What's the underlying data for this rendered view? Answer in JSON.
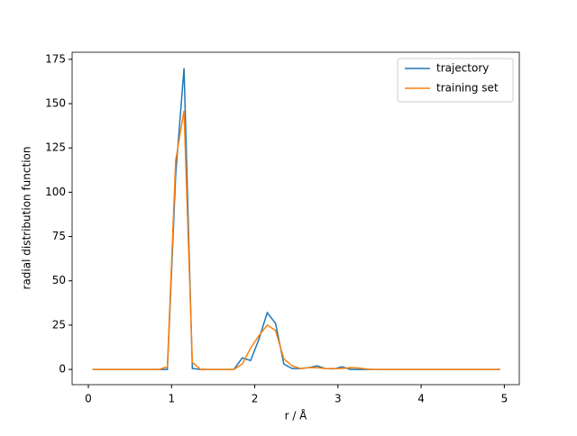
{
  "chart_data": {
    "type": "line",
    "xlabel": "r / Å",
    "ylabel": "radial distribution function",
    "x": [
      0.05,
      0.15,
      0.25,
      0.35,
      0.45,
      0.55,
      0.65,
      0.75,
      0.85,
      0.95,
      1.05,
      1.15,
      1.25,
      1.35,
      1.45,
      1.55,
      1.65,
      1.75,
      1.85,
      1.95,
      2.05,
      2.15,
      2.25,
      2.35,
      2.45,
      2.55,
      2.65,
      2.75,
      2.85,
      2.95,
      3.05,
      3.15,
      3.25,
      3.35,
      3.45,
      3.55,
      3.65,
      3.75,
      3.85,
      3.95,
      4.05,
      4.15,
      4.25,
      4.35,
      4.45,
      4.55,
      4.65,
      4.75,
      4.85,
      4.95
    ],
    "series": [
      {
        "name": "trajectory",
        "color": "#1f77b4",
        "values": [
          0,
          0,
          0,
          0,
          0,
          0,
          0,
          0,
          0,
          0,
          110,
          170,
          0.5,
          0,
          0,
          0,
          0,
          0,
          6.5,
          5,
          17,
          32,
          26,
          3,
          0.5,
          0.5,
          1,
          2,
          0.5,
          0.3,
          1.5,
          0,
          0,
          0,
          0,
          0,
          0,
          0,
          0,
          0,
          0,
          0,
          0,
          0,
          0,
          0,
          0,
          0,
          0,
          0
        ]
      },
      {
        "name": "training set",
        "color": "#ff7f0e",
        "values": [
          0,
          0,
          0,
          0,
          0,
          0,
          0,
          0,
          0,
          1.5,
          118,
          146,
          4,
          0,
          0,
          0,
          0,
          0,
          3,
          12,
          19,
          25,
          22,
          6,
          2,
          0.5,
          1,
          1,
          0.5,
          0.5,
          0.5,
          1,
          0.8,
          0.2,
          0,
          0,
          0,
          0,
          0,
          0,
          0,
          0,
          0,
          0,
          0,
          0,
          0,
          0,
          0,
          0
        ]
      }
    ],
    "xlim": [
      -0.195,
      5.18
    ],
    "ylim": [
      -8.6,
      179
    ],
    "xticks": [
      0,
      1,
      2,
      3,
      4,
      5
    ],
    "yticks": [
      0,
      25,
      50,
      75,
      100,
      125,
      150,
      175
    ],
    "legend": "upper right"
  }
}
